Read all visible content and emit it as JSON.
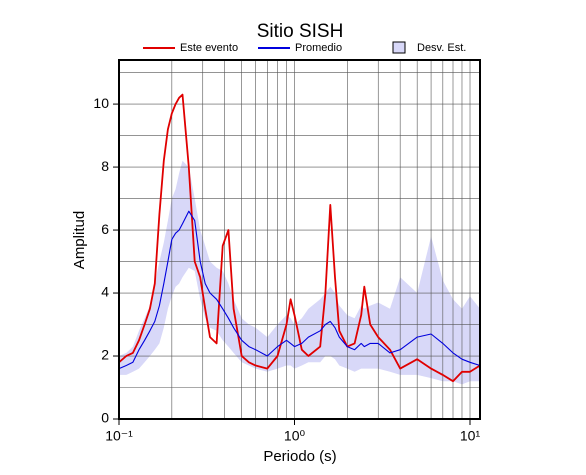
{
  "chart_data": {
    "type": "line",
    "title": "Sitio SISH",
    "x_label": "Periodo (s)",
    "y_label": "Amplitud",
    "x_scale": "log",
    "grid": true,
    "xlim": [
      0.1,
      11.4
    ],
    "ylim": [
      0,
      11.4
    ],
    "xticks": [
      {
        "value": 0.1,
        "label": "10⁻¹"
      },
      {
        "value": 1,
        "label": "10⁰"
      },
      {
        "value": 10,
        "label": "10¹"
      }
    ],
    "xminor": [
      0.2,
      0.3,
      0.4,
      0.5,
      0.6,
      0.7,
      0.8,
      0.9,
      2,
      3,
      4,
      5,
      6,
      7,
      8,
      9
    ],
    "yticks": [
      0,
      2,
      4,
      6,
      8,
      10
    ],
    "yminor": [
      1,
      3,
      5,
      7,
      9,
      11
    ],
    "x": [
      0.1,
      0.11,
      0.12,
      0.13,
      0.14,
      0.15,
      0.16,
      0.17,
      0.18,
      0.19,
      0.2,
      0.21,
      0.22,
      0.23,
      0.25,
      0.27,
      0.29,
      0.31,
      0.33,
      0.36,
      0.39,
      0.42,
      0.45,
      0.5,
      0.55,
      0.6,
      0.7,
      0.8,
      0.9,
      0.95,
      1.0,
      1.1,
      1.2,
      1.4,
      1.5,
      1.6,
      1.7,
      1.8,
      2.0,
      2.2,
      2.4,
      2.5,
      2.7,
      3.0,
      3.5,
      4,
      5,
      6,
      7,
      8,
      9,
      10,
      11.4
    ],
    "series": [
      {
        "name": "Este evento",
        "color": "#e00000",
        "values": [
          1.8,
          2.0,
          2.1,
          2.5,
          3.0,
          3.5,
          4.3,
          6.5,
          8.2,
          9.2,
          9.7,
          10.0,
          10.2,
          10.3,
          8.0,
          5.0,
          4.5,
          3.5,
          2.6,
          2.4,
          5.5,
          6.0,
          3.5,
          2.0,
          1.8,
          1.7,
          1.6,
          2.0,
          3.0,
          3.8,
          3.3,
          2.2,
          2.0,
          2.3,
          4.0,
          6.8,
          4.5,
          2.8,
          2.3,
          2.4,
          3.3,
          4.2,
          3.0,
          2.6,
          2.2,
          1.6,
          1.9,
          1.6,
          1.4,
          1.2,
          1.5,
          1.5,
          1.7
        ]
      },
      {
        "name": "Promedio",
        "color": "#0000dd",
        "values": [
          1.6,
          1.7,
          1.8,
          2.2,
          2.5,
          2.8,
          3.1,
          3.6,
          4.3,
          5.0,
          5.7,
          5.9,
          6.0,
          6.2,
          6.6,
          6.3,
          5.0,
          4.3,
          4.0,
          3.8,
          3.5,
          3.2,
          2.9,
          2.5,
          2.3,
          2.2,
          2.0,
          2.3,
          2.5,
          2.4,
          2.3,
          2.4,
          2.6,
          2.8,
          3.0,
          3.1,
          2.9,
          2.6,
          2.3,
          2.2,
          2.4,
          2.3,
          2.4,
          2.4,
          2.1,
          2.2,
          2.6,
          2.7,
          2.4,
          2.1,
          1.9,
          1.8,
          1.7
        ]
      },
      {
        "name": "Desv. Est.",
        "color": "#d8d8f8",
        "upper": [
          2.0,
          2.1,
          2.3,
          2.8,
          3.2,
          3.6,
          4.3,
          5.0,
          5.6,
          6.3,
          7.0,
          7.3,
          7.8,
          8.2,
          8.0,
          7.0,
          6.0,
          5.5,
          5.0,
          4.8,
          4.7,
          4.3,
          3.8,
          3.2,
          3.0,
          2.9,
          2.6,
          3.0,
          3.3,
          3.2,
          3.0,
          3.2,
          3.5,
          3.8,
          4.0,
          4.2,
          4.0,
          3.6,
          3.3,
          3.2,
          3.6,
          3.5,
          3.6,
          3.7,
          3.5,
          4.5,
          4.0,
          5.8,
          4.4,
          3.8,
          3.5,
          3.9,
          3.5
        ],
        "lower": [
          1.4,
          1.4,
          1.5,
          1.6,
          1.8,
          2.0,
          2.2,
          2.4,
          2.9,
          3.5,
          3.9,
          4.2,
          4.3,
          4.5,
          4.8,
          4.7,
          3.8,
          3.2,
          2.9,
          2.8,
          2.5,
          2.3,
          2.1,
          1.8,
          1.7,
          1.6,
          1.5,
          1.6,
          1.7,
          1.7,
          1.6,
          1.7,
          1.8,
          1.8,
          2.0,
          2.0,
          1.9,
          1.7,
          1.6,
          1.5,
          1.6,
          1.6,
          1.6,
          1.6,
          1.5,
          1.4,
          1.4,
          1.3,
          1.2,
          1.2,
          1.1,
          1.2,
          1.2
        ]
      }
    ]
  }
}
